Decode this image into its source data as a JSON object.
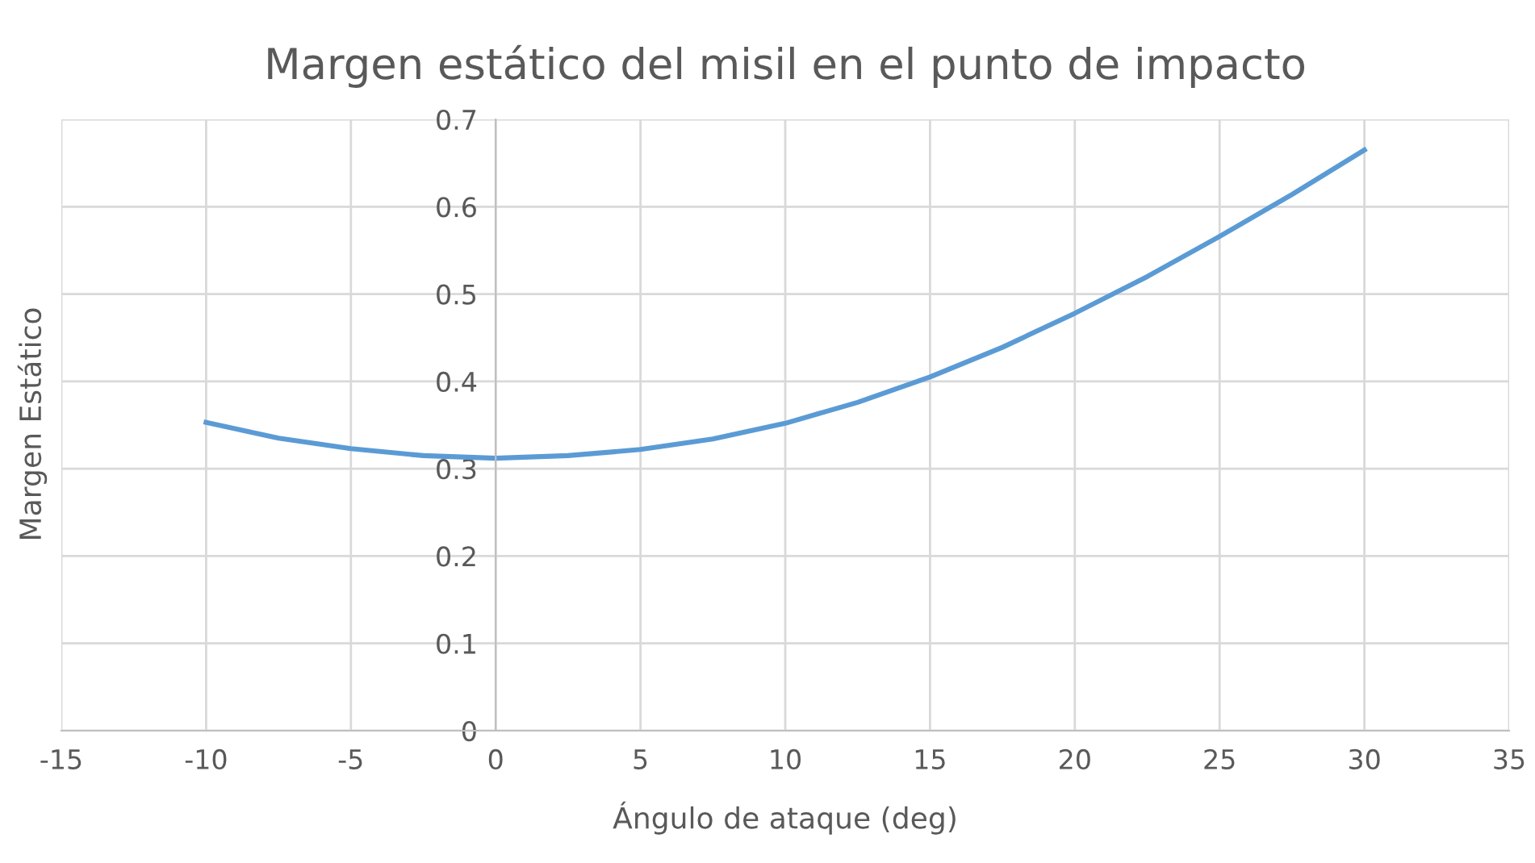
{
  "chart_data": {
    "type": "line",
    "title": "Margen estático del misil en el punto de impacto",
    "xlabel": "Ángulo de ataque (deg)",
    "ylabel": "Margen Estático",
    "series": [
      {
        "color": "#5b9bd5",
        "x": [
          -10,
          -7.5,
          -5,
          -2.5,
          0,
          2.5,
          5,
          7.5,
          10,
          12.5,
          15,
          17.5,
          20,
          22.5,
          25,
          27.5,
          30
        ],
        "values": [
          0.353,
          0.335,
          0.323,
          0.315,
          0.312,
          0.315,
          0.322,
          0.334,
          0.352,
          0.376,
          0.405,
          0.439,
          0.478,
          0.52,
          0.566,
          0.614,
          0.665
        ]
      }
    ],
    "xlim": [
      -15,
      35
    ],
    "xticks": [
      -15,
      -10,
      -5,
      0,
      5,
      10,
      15,
      20,
      25,
      30,
      35
    ],
    "ylim": [
      0,
      0.7
    ],
    "yticks": [
      0,
      0.1,
      0.2,
      0.3,
      0.4,
      0.5,
      0.6,
      0.7
    ],
    "grid": true,
    "legend": false,
    "marker": "none",
    "line_style": "solid"
  }
}
